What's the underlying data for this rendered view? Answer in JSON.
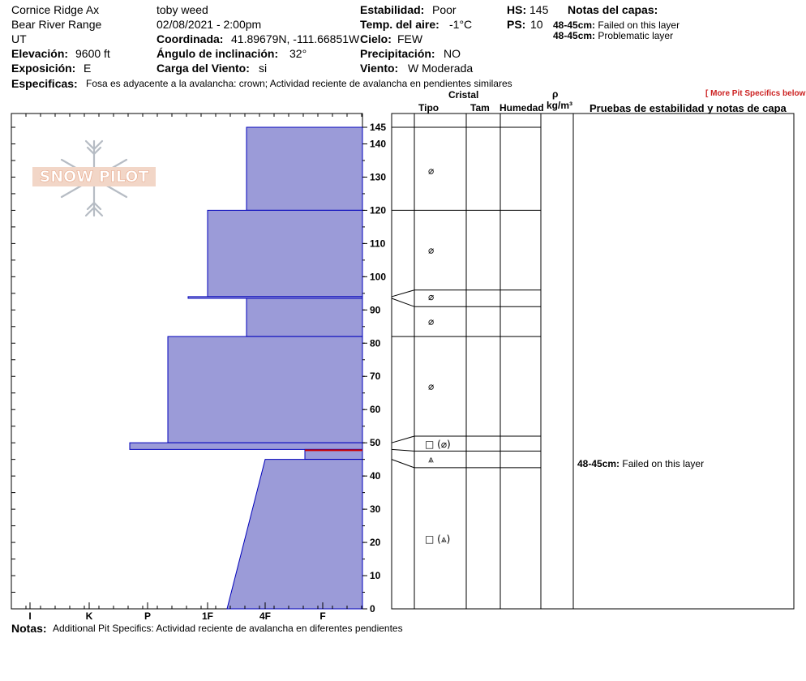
{
  "header": {
    "location": "Cornice Ridge Ax",
    "range": "Bear River Range",
    "state": "UT",
    "elevation_label": "Elevación:",
    "elevation_value": "9600 ft",
    "aspect_label": "Exposición:",
    "aspect_value": "E",
    "observer": "toby weed",
    "datetime": "02/08/2021 - 2:00pm",
    "coord_label": "Coordinada:",
    "coord_value": "41.89679N, -111.66851W",
    "slope_label": "Ángulo de inclinación:",
    "slope_value": "32°",
    "wind_load_label": "Carga del Viento:",
    "wind_load_value": "si",
    "stability_label": "Estabilidad:",
    "stability_value": "Poor",
    "air_temp_label": "Temp. del aire:",
    "air_temp_value": "-1°C",
    "sky_label": "Cielo:",
    "sky_value": "FEW",
    "precip_label": "Precipitación:",
    "precip_value": "NO",
    "wind_label": "Viento:",
    "wind_value": "W Moderada",
    "hs_label": "HS:",
    "hs_value": "145",
    "ps_label": "PS:",
    "ps_value": "10",
    "layer_notes_title": "Notas del capas:",
    "layer_notes": [
      {
        "range": "48-45cm:",
        "text": "Failed on this layer"
      },
      {
        "range": "48-45cm:",
        "text": "Problematic layer"
      }
    ],
    "specifics_label": "Especificas:",
    "specifics_value": "Fosa es adyacente a la avalancha: crown;  Actividad reciente de avalancha en pendientes similares",
    "more_link": "[ More Pit Specifics below ]"
  },
  "columns": {
    "crystal": "Cristal",
    "type": "Tipo",
    "size": "Tam",
    "moisture": "Humedad",
    "rho": "ρ",
    "density": "kg/m³",
    "tests": "Pruebas de estabilidad y notas de capa"
  },
  "logo": {
    "text": "SNOW PILOT",
    "icon": "snowflake-icon"
  },
  "test_note": {
    "range": "48-45cm:",
    "text": "Failed on this layer"
  },
  "notes_label": "Notas:",
  "notes_value": "Additional Pit Specifics: Actividad reciente de avalancha en diferentes pendientes",
  "colors": {
    "fill": "#9b9bd8",
    "edge": "#0000bb",
    "weak_layer": "#cc0000"
  },
  "chart_data": {
    "type": "snow-profile",
    "y_range_cm": [
      0,
      145
    ],
    "y_ticks": [
      0,
      10,
      20,
      30,
      40,
      50,
      60,
      70,
      80,
      90,
      100,
      110,
      120,
      130,
      140,
      145
    ],
    "hardness_scale": [
      "I",
      "K",
      "P",
      "1F",
      "4F",
      "F"
    ],
    "hardness_layers": [
      {
        "top": 145,
        "bottom": 120,
        "hardness_top": "1F+",
        "hardness_bottom": "1F+"
      },
      {
        "top": 120,
        "bottom": 94,
        "hardness_top": "1F",
        "hardness_bottom": "1F"
      },
      {
        "top": 94,
        "bottom": 93.5,
        "hardness_top": "P+",
        "hardness_bottom": "P+"
      },
      {
        "top": 93.5,
        "bottom": 82,
        "hardness_top": "1F+",
        "hardness_bottom": "1F+"
      },
      {
        "top": 82,
        "bottom": 50,
        "hardness_top": "P",
        "hardness_bottom": "P"
      },
      {
        "top": 50,
        "bottom": 48,
        "hardness_top": "K+",
        "hardness_bottom": "K+"
      },
      {
        "top": 48,
        "bottom": 45,
        "hardness_top": "4F+",
        "hardness_bottom": "4F+"
      },
      {
        "top": 45,
        "bottom": 0,
        "hardness_top": "4F",
        "hardness_bottom": "1F-"
      }
    ],
    "layer_boundaries_cm": [
      145,
      120,
      96,
      91,
      82,
      52,
      47.5,
      42.5
    ],
    "grain_types": [
      {
        "depth": 132,
        "symbol": "⌀",
        "name": "decomposing-fragments"
      },
      {
        "depth": 108,
        "symbol": "⌀",
        "name": "decomposing-fragments"
      },
      {
        "depth": 94,
        "symbol": "⌀",
        "name": "decomposing-fragments"
      },
      {
        "depth": 86.5,
        "symbol": "⌀",
        "name": "decomposing-fragments"
      },
      {
        "depth": 67,
        "symbol": "⌀",
        "name": "decomposing-fragments"
      },
      {
        "depth": 49.5,
        "symbol": "□ (⌀)",
        "name": "faceted-with-decomposing"
      },
      {
        "depth": 45,
        "symbol": "⩓",
        "name": "depth-hoar"
      },
      {
        "depth": 21,
        "symbol": "□ (⩓)",
        "name": "faceted-with-depth-hoar"
      }
    ]
  }
}
